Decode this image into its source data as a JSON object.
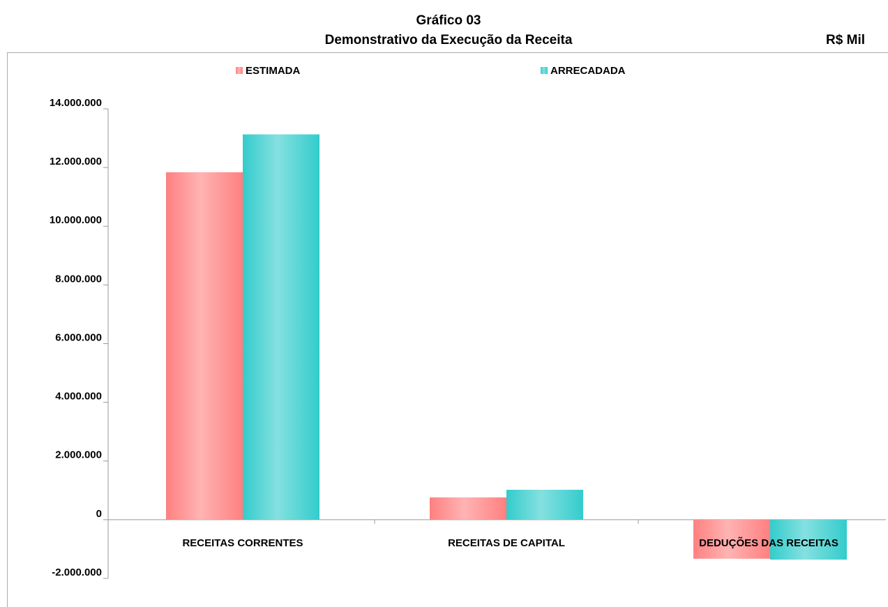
{
  "chart_data": {
    "type": "bar",
    "title": "Gráfico 03",
    "subtitle": "Demonstrativo da Execução da Receita",
    "unit_label": "R$ Mil",
    "categories": [
      "RECEITAS CORRENTES",
      "RECEITAS DE CAPITAL",
      "DEDUÇÕES DAS RECEITAS"
    ],
    "series": [
      {
        "name": "ESTIMADA",
        "color": "#ff8080",
        "values": [
          11840000,
          760000,
          -1330000
        ]
      },
      {
        "name": "ARRECADADA",
        "color": "#33cccc",
        "values": [
          13130000,
          1020000,
          -1360000
        ]
      }
    ],
    "ylim": [
      -2000000,
      14000000
    ],
    "yticks": [
      {
        "value": -2000000,
        "label": "-2.000.000"
      },
      0,
      {
        "value": 2000000,
        "label": "2.000.000"
      },
      {
        "value": 4000000,
        "label": "4.000.000"
      },
      {
        "value": 6000000,
        "label": "6.000.000"
      },
      {
        "value": 8000000,
        "label": "8.000.000"
      },
      {
        "value": 10000000,
        "label": "10.000.000"
      },
      {
        "value": 12000000,
        "label": "12.000.000"
      },
      {
        "value": 14000000,
        "label": "14.000.000"
      }
    ],
    "legend": "top"
  }
}
